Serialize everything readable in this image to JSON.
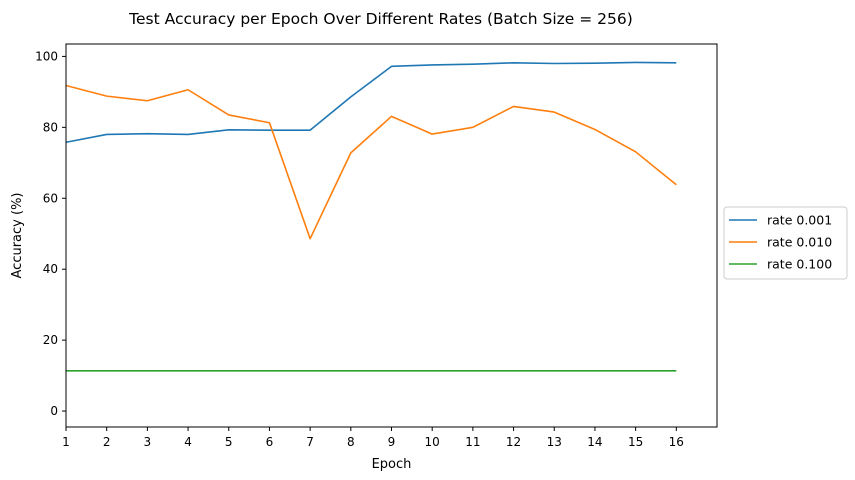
{
  "chart_data": {
    "type": "line",
    "title": "Test Accuracy per Epoch Over Different Rates (Batch Size = 256)",
    "xlabel": "Epoch",
    "ylabel": "Accuracy (%)",
    "x": [
      1,
      2,
      3,
      4,
      5,
      6,
      7,
      8,
      9,
      10,
      11,
      12,
      13,
      14,
      15,
      16
    ],
    "xlim": [
      1,
      17
    ],
    "ylim": [
      -4.5,
      103.5
    ],
    "xticks": [
      1,
      2,
      3,
      4,
      5,
      6,
      7,
      8,
      9,
      10,
      11,
      12,
      13,
      14,
      15,
      16
    ],
    "yticks": [
      0,
      20,
      40,
      60,
      80,
      100
    ],
    "grid": false,
    "legend_position": "center-right-outside",
    "series": [
      {
        "name": "rate 0.001",
        "color": "#1f77b4",
        "values": [
          75.8,
          78.0,
          78.2,
          78.0,
          79.3,
          79.2,
          79.2,
          88.6,
          97.2,
          97.6,
          97.8,
          98.2,
          98.0,
          98.1,
          98.3,
          98.2
        ]
      },
      {
        "name": "rate 0.010",
        "color": "#ff7f0e",
        "values": [
          91.8,
          88.8,
          87.5,
          90.6,
          83.5,
          81.3,
          48.6,
          72.8,
          83.1,
          78.1,
          80.0,
          85.9,
          84.3,
          79.4,
          73.1,
          63.8
        ]
      },
      {
        "name": "rate 0.100",
        "color": "#2ca02c",
        "values": [
          11.35,
          11.35,
          11.35,
          11.35,
          11.35,
          11.35,
          11.35,
          11.35,
          11.35,
          11.35,
          11.35,
          11.35,
          11.35,
          11.35,
          11.35,
          11.35
        ]
      }
    ]
  }
}
